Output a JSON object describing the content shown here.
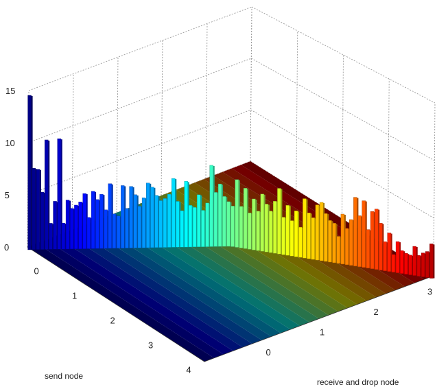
{
  "chart_data": {
    "type": "bar3d",
    "xlabel": "send node",
    "ylabel": "receive and drop node",
    "zlabel": "",
    "title": "",
    "zlim": [
      0,
      15
    ],
    "z_ticks": [
      "0",
      "5",
      "10",
      "15"
    ],
    "x_ticks": [
      "0",
      "1",
      "2",
      "3",
      "4"
    ],
    "y_ticks": [
      "0",
      "1",
      "2",
      "3"
    ],
    "grid": true,
    "colormap": "jet",
    "bar_heights": [
      14.8,
      7.8,
      7.7,
      5.5,
      10.5,
      2.5,
      4.6,
      10.6,
      2.5,
      4.7,
      3.9,
      4.2,
      4.5,
      5.3,
      3.0,
      5.5,
      4.7,
      5.2,
      3.7,
      6.2,
      3.3,
      3.1,
      6.0,
      3.8,
      5.9,
      5.1,
      4.0,
      4.8,
      6.2,
      5.8,
      5.0,
      4.5,
      4.7,
      5.1,
      6.6,
      4.4,
      3.5,
      6.3,
      4.0,
      3.8,
      5.0,
      3.5,
      4.2,
      7.8,
      5.2,
      6.0,
      4.8,
      4.3,
      3.9,
      6.5,
      4.0,
      5.8,
      3.5,
      4.9,
      3.8,
      5.5,
      4.6,
      4.0,
      5.0,
      6.3,
      3.6,
      4.8,
      3.4,
      4.4,
      2.9,
      5.7,
      4.4,
      4.0,
      5.3,
      5.6,
      4.6,
      4.0,
      3.8,
      2.6,
      4.8,
      3.5,
      4.4,
      6.6,
      4.9,
      6.4,
      3.7,
      5.5,
      5.8,
      4.5,
      2.8,
      3.7,
      1.7,
      3.0,
      2.2,
      2.0,
      1.9,
      2.8,
      2.0,
      2.3,
      2.5,
      3.3
    ]
  }
}
